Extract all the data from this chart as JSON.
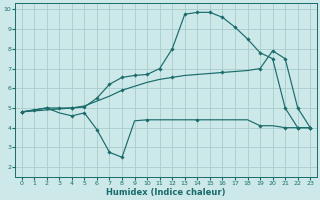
{
  "xlabel": "Humidex (Indice chaleur)",
  "bg_color": "#cce8e8",
  "grid_color": "#aacccc",
  "line_color": "#1a6b6b",
  "xlim": [
    -0.5,
    23.5
  ],
  "ylim": [
    1.5,
    10.3
  ],
  "xticks": [
    0,
    1,
    2,
    3,
    4,
    5,
    6,
    7,
    8,
    9,
    10,
    11,
    12,
    13,
    14,
    15,
    16,
    17,
    18,
    19,
    20,
    21,
    22,
    23
  ],
  "yticks": [
    2,
    3,
    4,
    5,
    6,
    7,
    8,
    9,
    10
  ],
  "curve_peak_x": [
    0,
    1,
    2,
    3,
    4,
    5,
    6,
    7,
    8,
    9,
    10,
    11,
    12,
    13,
    14,
    15,
    16,
    17,
    18,
    19,
    20,
    21,
    22,
    23
  ],
  "curve_peak_y": [
    4.8,
    4.9,
    5.0,
    5.0,
    5.0,
    5.05,
    5.5,
    6.2,
    6.55,
    6.65,
    6.7,
    7.0,
    8.0,
    9.75,
    9.85,
    9.85,
    9.6,
    9.1,
    8.5,
    7.8,
    7.5,
    5.0,
    4.0,
    4.0
  ],
  "curve_diag_x": [
    0,
    1,
    2,
    3,
    4,
    5,
    6,
    7,
    8,
    9,
    10,
    11,
    12,
    13,
    14,
    15,
    16,
    17,
    18,
    19,
    20,
    21,
    22,
    23
  ],
  "curve_diag_y": [
    4.8,
    4.85,
    4.9,
    4.95,
    5.0,
    5.1,
    5.35,
    5.6,
    5.9,
    6.1,
    6.3,
    6.45,
    6.55,
    6.65,
    6.7,
    6.75,
    6.8,
    6.85,
    6.9,
    7.0,
    7.9,
    7.5,
    5.0,
    4.0
  ],
  "curve_low_x": [
    0,
    1,
    2,
    3,
    4,
    5,
    6,
    7,
    8,
    9,
    10,
    11,
    12,
    13,
    14,
    15,
    16,
    17,
    18,
    19,
    20,
    21,
    22,
    23
  ],
  "curve_low_y": [
    4.8,
    4.9,
    5.0,
    4.75,
    4.6,
    4.75,
    3.9,
    2.75,
    2.5,
    4.35,
    4.4,
    4.4,
    4.4,
    4.4,
    4.4,
    4.4,
    4.4,
    4.4,
    4.4,
    4.1,
    4.1,
    4.0,
    4.0,
    4.0
  ],
  "marker_peak_every": [
    0,
    2,
    4,
    6,
    8,
    10,
    12,
    13,
    14,
    15,
    16,
    17,
    18,
    19,
    20,
    21,
    22,
    23
  ],
  "marker_diag_every": [
    0,
    4,
    8,
    12,
    16,
    19,
    20,
    21,
    22,
    23
  ],
  "marker_low_every": [
    0,
    2,
    4,
    5,
    6,
    7,
    8,
    10,
    14,
    19,
    21,
    22,
    23
  ]
}
